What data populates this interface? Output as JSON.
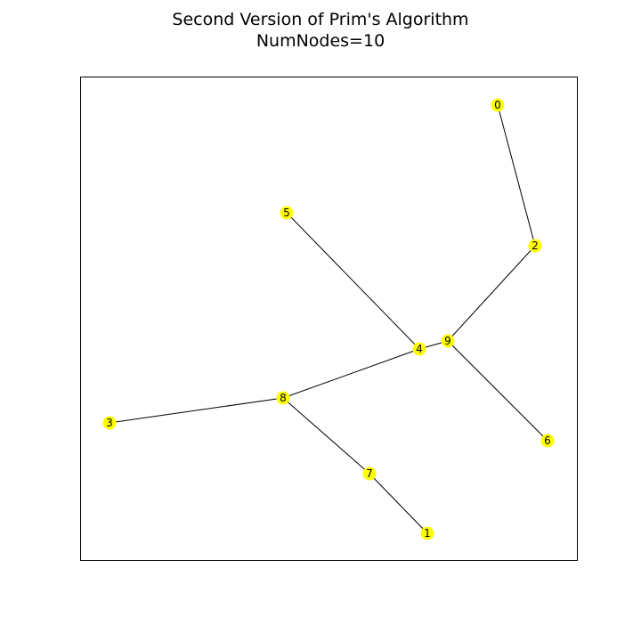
{
  "title": {
    "line1": "Second Version of Prim's Algorithm",
    "line2": "NumNodes=10"
  },
  "graph": {
    "node_color": "#ffff00",
    "edge_color": "#000000",
    "nodes": [
      {
        "id": "0",
        "label": "0"
      },
      {
        "id": "1",
        "label": "1"
      },
      {
        "id": "2",
        "label": "2"
      },
      {
        "id": "3",
        "label": "3"
      },
      {
        "id": "4",
        "label": "4"
      },
      {
        "id": "5",
        "label": "5"
      },
      {
        "id": "6",
        "label": "6"
      },
      {
        "id": "7",
        "label": "7"
      },
      {
        "id": "8",
        "label": "8"
      },
      {
        "id": "9",
        "label": "9"
      }
    ],
    "edges": [
      [
        "0",
        "2"
      ],
      [
        "2",
        "9"
      ],
      [
        "9",
        "4"
      ],
      [
        "9",
        "6"
      ],
      [
        "4",
        "5"
      ],
      [
        "4",
        "8"
      ],
      [
        "8",
        "3"
      ],
      [
        "8",
        "7"
      ],
      [
        "7",
        "1"
      ]
    ]
  }
}
